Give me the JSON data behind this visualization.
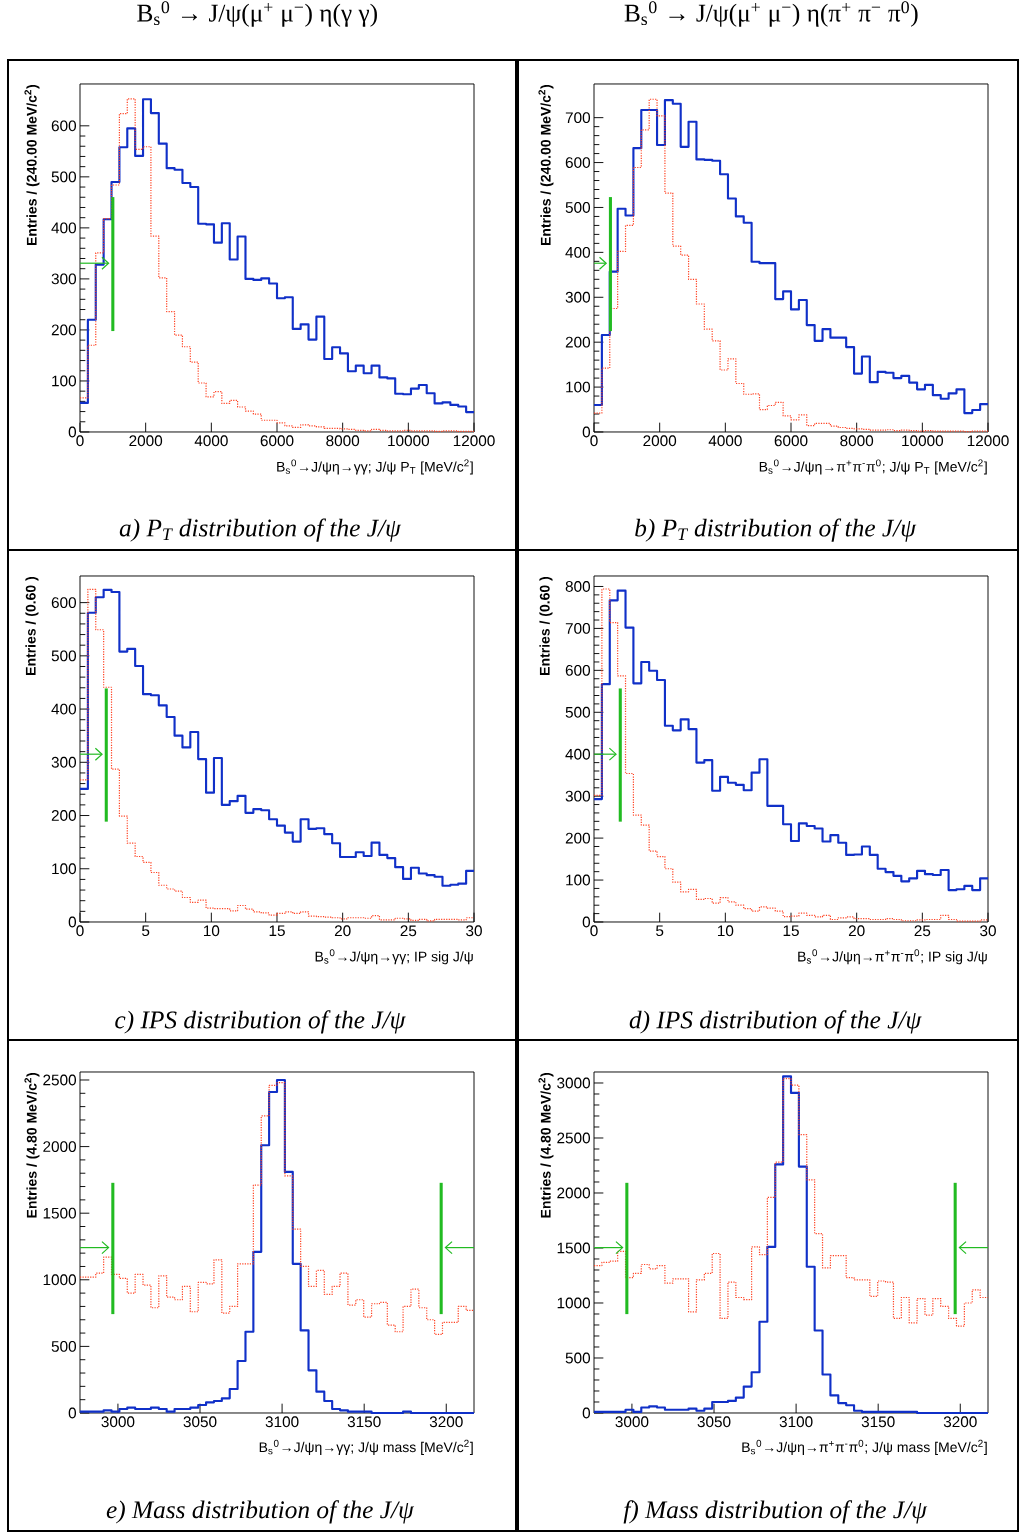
{
  "chart_data": [
    {
      "type": "histogram",
      "title": "B$_{s}$$^{0}$ → J/ψ(μ$^{+}$ μ$^{−}$) η(γ γ)",
      "xlabel": "B$_{s}$$^{0}$→J/ψη→γγ; J/ψ P$_{T}$ [MeV/c$^{2}$]",
      "ylabel": "Entries / (240.00 MeV/c$^{2}$)",
      "bins": [
        0,
        240,
        480,
        720,
        960,
        1200,
        1440,
        1680,
        1920,
        2160,
        2400,
        2640,
        2880,
        3120,
        3360,
        3600,
        3840,
        4080,
        4320,
        4560,
        4800,
        5040,
        5280,
        5520,
        5760,
        6000,
        6240,
        6480,
        6720,
        6960,
        7200,
        7440,
        7680,
        7920,
        8160,
        8400,
        8640,
        8880,
        9120,
        9360,
        9600,
        9840,
        10080,
        10320,
        10560,
        10800,
        11040,
        11280,
        11520,
        11760,
        12000
      ],
      "xlim": [
        0,
        12000
      ],
      "ylim": [
        0,
        682
      ],
      "xticks": [
        0,
        2000,
        4000,
        6000,
        8000,
        10000,
        12000
      ],
      "yticks": [
        0,
        100,
        200,
        300,
        400,
        500,
        600
      ],
      "series": [
        {
          "color": "#1030c8",
          "line_style": "solid",
          "values": [
            57,
            220,
            328,
            417,
            490,
            558,
            595,
            541,
            652,
            625,
            565,
            517,
            514,
            488,
            480,
            408,
            407,
            371,
            409,
            338,
            383,
            300,
            298,
            301,
            291,
            262,
            264,
            202,
            211,
            181,
            226,
            143,
            166,
            154,
            119,
            130,
            115,
            130,
            107,
            105,
            75,
            74,
            85,
            92,
            76,
            56,
            58,
            53,
            50,
            39
          ]
        },
        {
          "color": "#ff4020",
          "line_style": "dotted",
          "values": [
            67,
            170,
            351,
            418,
            484,
            624,
            653,
            554,
            559,
            384,
            302,
            236,
            190,
            167,
            137,
            96,
            69,
            79,
            56,
            62,
            49,
            41,
            35,
            23,
            23,
            18,
            12,
            9,
            14,
            12,
            10,
            7,
            7,
            6,
            5,
            3,
            2,
            5,
            3,
            2,
            2,
            3,
            2,
            2,
            2,
            1,
            2,
            2,
            1,
            1
          ]
        }
      ],
      "ref_lines": [
        {
          "axis": "x",
          "value": 1000,
          "color": "#22bb22"
        }
      ],
      "annotations": [
        "*a) P$_{T}$ distribution of the J/ψ*"
      ]
    },
    {
      "type": "histogram",
      "title": "B$_{s}$$^{0}$ → J/ψ(μ$^{+}$ μ$^{−}$) η(π$^{+}$ π$^{−}$ π$^{0}$)",
      "xlabel": "B$_{s}$$^{0}$→J/ψη→π$^{+}$π$^{-}$π$^{0}$; J/ψ P$_{T}$ [MeV/c$^{2}$]",
      "ylabel": "Entries / (240.00 MeV/c$^{2}$)",
      "bins": [
        0,
        240,
        480,
        720,
        960,
        1200,
        1440,
        1680,
        1920,
        2160,
        2400,
        2640,
        2880,
        3120,
        3360,
        3600,
        3840,
        4080,
        4320,
        4560,
        4800,
        5040,
        5280,
        5520,
        5760,
        6000,
        6240,
        6480,
        6720,
        6960,
        7200,
        7440,
        7680,
        7920,
        8160,
        8400,
        8640,
        8880,
        9120,
        9360,
        9600,
        9840,
        10080,
        10320,
        10560,
        10800,
        11040,
        11280,
        11520,
        11760,
        12000
      ],
      "xlim": [
        0,
        12000
      ],
      "ylim": [
        0,
        775
      ],
      "xticks": [
        0,
        2000,
        4000,
        6000,
        8000,
        10000,
        12000
      ],
      "yticks": [
        0,
        100,
        200,
        300,
        400,
        500,
        600,
        700
      ],
      "series": [
        {
          "color": "#1030c8",
          "line_style": "solid",
          "values": [
            60,
            216,
            357,
            497,
            482,
            632,
            717,
            717,
            639,
            739,
            731,
            635,
            691,
            607,
            606,
            604,
            574,
            520,
            480,
            466,
            379,
            376,
            376,
            296,
            313,
            273,
            294,
            238,
            203,
            229,
            210,
            210,
            189,
            130,
            168,
            111,
            134,
            132,
            120,
            125,
            110,
            95,
            105,
            82,
            74,
            86,
            95,
            42,
            49,
            62
          ]
        },
        {
          "color": "#ff4020",
          "line_style": "dotted",
          "values": [
            42,
            142,
            275,
            402,
            460,
            589,
            673,
            741,
            704,
            532,
            414,
            394,
            340,
            285,
            229,
            203,
            138,
            163,
            108,
            84,
            85,
            50,
            59,
            66,
            36,
            27,
            38,
            14,
            19,
            19,
            13,
            10,
            8,
            7,
            6,
            4,
            4,
            5,
            3,
            4,
            3,
            2,
            3,
            2,
            2,
            2,
            2,
            1,
            2,
            2
          ]
        }
      ],
      "ref_lines": [
        {
          "axis": "x",
          "value": 500,
          "color": "#22bb22"
        }
      ],
      "annotations": [
        "*b) P$_{T}$ distribution of the J/ψ*"
      ]
    },
    {
      "type": "histogram",
      "xlabel": "B$_{s}$$^{0}$→J/ψη→γγ; IP sig J/ψ",
      "ylabel": "Entries / (0.60 )",
      "bins": [
        0,
        0.6,
        1.2,
        1.8,
        2.4,
        3,
        3.6,
        4.2,
        4.8,
        5.4,
        6,
        6.6,
        7.2,
        7.8,
        8.4,
        9,
        9.6,
        10.2,
        10.8,
        11.4,
        12,
        12.6,
        13.2,
        13.8,
        14.4,
        15,
        15.6,
        16.2,
        16.8,
        17.4,
        18,
        18.6,
        19.2,
        19.8,
        20.4,
        21,
        21.6,
        22.2,
        22.8,
        23.4,
        24,
        24.6,
        25.2,
        25.8,
        26.4,
        27,
        27.6,
        28.2,
        28.8,
        29.4,
        30
      ],
      "xlim": [
        0,
        30
      ],
      "ylim": [
        0,
        650
      ],
      "xticks": [
        0,
        5,
        10,
        15,
        20,
        25,
        30
      ],
      "yticks": [
        0,
        100,
        200,
        300,
        400,
        500,
        600
      ],
      "series": [
        {
          "color": "#1030c8",
          "line_style": "solid",
          "values": [
            250,
            581,
            610,
            624,
            620,
            508,
            513,
            481,
            428,
            426,
            407,
            385,
            350,
            328,
            357,
            306,
            243,
            308,
            220,
            227,
            237,
            205,
            212,
            210,
            193,
            181,
            168,
            151,
            193,
            175,
            176,
            165,
            148,
            122,
            122,
            131,
            124,
            149,
            126,
            120,
            103,
            81,
            102,
            91,
            88,
            85,
            68,
            70,
            72,
            96
          ]
        },
        {
          "color": "#ff4020",
          "line_style": "dotted",
          "values": [
            267,
            625,
            549,
            441,
            287,
            199,
            148,
            123,
            112,
            93,
            69,
            62,
            58,
            46,
            37,
            41,
            26,
            25,
            25,
            21,
            31,
            24,
            19,
            17,
            13,
            16,
            19,
            16,
            19,
            11,
            10,
            9,
            8,
            6,
            8,
            8,
            7,
            12,
            4,
            4,
            7,
            6,
            3,
            5,
            2,
            5,
            5,
            5,
            4,
            8
          ]
        }
      ],
      "ref_lines": [
        {
          "axis": "x",
          "value": 2,
          "color": "#22bb22"
        }
      ],
      "annotations": [
        "*c) IPS distribution of the J/ψ*"
      ]
    },
    {
      "type": "histogram",
      "xlabel": "B$_{s}$$^{0}$→J/ψη→π$^{+}$π$^{-}$π$^{0}$; IP sig J/ψ",
      "ylabel": "Entries / (0.60 )",
      "bins": [
        0,
        0.6,
        1.2,
        1.8,
        2.4,
        3,
        3.6,
        4.2,
        4.8,
        5.4,
        6,
        6.6,
        7.2,
        7.8,
        8.4,
        9,
        9.6,
        10.2,
        10.8,
        11.4,
        12,
        12.6,
        13.2,
        13.8,
        14.4,
        15,
        15.6,
        16.2,
        16.8,
        17.4,
        18,
        18.6,
        19.2,
        19.8,
        20.4,
        21,
        21.6,
        22.2,
        22.8,
        23.4,
        24,
        24.6,
        25.2,
        25.8,
        26.4,
        27,
        27.6,
        28.2,
        28.8,
        29.4,
        30
      ],
      "xlim": [
        0,
        30
      ],
      "ylim": [
        0,
        825
      ],
      "xticks": [
        0,
        5,
        10,
        15,
        20,
        25,
        30
      ],
      "yticks": [
        0,
        100,
        200,
        300,
        400,
        500,
        600,
        700,
        800
      ],
      "series": [
        {
          "color": "#1030c8",
          "line_style": "solid",
          "values": [
            293,
            567,
            767,
            790,
            702,
            569,
            620,
            599,
            577,
            468,
            457,
            483,
            460,
            380,
            386,
            313,
            346,
            332,
            327,
            314,
            356,
            388,
            277,
            277,
            233,
            193,
            235,
            229,
            223,
            192,
            207,
            189,
            160,
            161,
            180,
            160,
            127,
            119,
            110,
            97,
            104,
            122,
            114,
            112,
            124,
            76,
            78,
            86,
            76,
            104
          ]
        },
        {
          "color": "#ff4020",
          "line_style": "dotted",
          "values": [
            302,
            794,
            714,
            587,
            354,
            255,
            231,
            169,
            156,
            127,
            95,
            72,
            78,
            54,
            56,
            45,
            58,
            48,
            40,
            32,
            26,
            36,
            33,
            26,
            13,
            14,
            21,
            16,
            12,
            16,
            6,
            10,
            12,
            8,
            8,
            6,
            6,
            8,
            6,
            3,
            3,
            5,
            6,
            6,
            16,
            6,
            2,
            2,
            2,
            5
          ]
        }
      ],
      "ref_lines": [
        {
          "axis": "x",
          "value": 2,
          "color": "#22bb22"
        }
      ],
      "annotations": [
        "*d) IPS distribution of the J/ψ*"
      ]
    },
    {
      "type": "histogram",
      "xlabel": "B$_{s}$$^{0}$→J/ψη→γγ; J/ψ mass [MeV/c$^{2}$]",
      "ylabel": "Entries / (4.80 MeV/c$^{2}$)",
      "bins": [
        2976.9,
        2981.7,
        2986.5,
        2991.3,
        2996.1,
        3000.9,
        3005.7,
        3010.5,
        3015.3,
        3020.1,
        3024.9,
        3029.7,
        3034.5,
        3039.3,
        3044.1,
        3048.9,
        3053.7,
        3058.5,
        3063.3,
        3068.1,
        3072.9,
        3077.7,
        3082.5,
        3087.3,
        3092.1,
        3096.9,
        3101.7,
        3106.5,
        3111.3,
        3116.1,
        3120.9,
        3125.7,
        3130.5,
        3135.3,
        3140.1,
        3144.9,
        3149.7,
        3154.5,
        3159.3,
        3164.1,
        3168.9,
        3173.7,
        3178.5,
        3183.3,
        3188.1,
        3192.9,
        3197.7,
        3202.5,
        3207.3,
        3212.1,
        3216.9
      ],
      "xlim": [
        2976.9,
        3216.9
      ],
      "ylim": [
        0,
        2560
      ],
      "xticks": [
        3000,
        3050,
        3100,
        3150,
        3200
      ],
      "yticks": [
        0,
        500,
        1000,
        1500,
        2000,
        2500
      ],
      "series": [
        {
          "color": "#1030c8",
          "line_style": "solid",
          "values": [
            10,
            10,
            10,
            20,
            10,
            30,
            40,
            30,
            30,
            40,
            30,
            10,
            30,
            30,
            40,
            60,
            80,
            90,
            110,
            180,
            390,
            610,
            1210,
            2010,
            2410,
            2500,
            1810,
            1120,
            620,
            320,
            160,
            90,
            30,
            20,
            10,
            10,
            10,
            0,
            0,
            0,
            0,
            10,
            0,
            0,
            0,
            0,
            0,
            0,
            0,
            0
          ]
        },
        {
          "color": "#ff4020",
          "line_style": "dotted",
          "values": [
            1020,
            1020,
            1050,
            1170,
            1040,
            1010,
            900,
            1040,
            960,
            790,
            1030,
            870,
            850,
            950,
            760,
            980,
            970,
            1150,
            750,
            800,
            1120,
            1120,
            1710,
            2230,
            2460,
            2480,
            1780,
            1380,
            1100,
            950,
            1070,
            890,
            950,
            1050,
            810,
            850,
            720,
            820,
            830,
            660,
            610,
            800,
            930,
            790,
            700,
            590,
            680,
            680,
            800,
            770
          ]
        }
      ],
      "ref_lines": [
        {
          "axis": "x",
          "value": 2996.9,
          "color": "#22bb22"
        },
        {
          "axis": "x",
          "value": 3196.9,
          "color": "#22bb22"
        }
      ],
      "annotations": [
        "*e) Mass distribution of the J/ψ*"
      ]
    },
    {
      "type": "histogram",
      "xlabel": "B$_{s}$$^{0}$→J/ψη→π$^{+}$π$^{-}$π$^{0}$; J/ψ mass [MeV/c$^{2}$]",
      "ylabel": "Entries / (4.80 MeV/c$^{2}$)",
      "bins": [
        2976.9,
        2981.7,
        2986.5,
        2991.3,
        2996.1,
        3000.9,
        3005.7,
        3010.5,
        3015.3,
        3020.1,
        3024.9,
        3029.7,
        3034.5,
        3039.3,
        3044.1,
        3048.9,
        3053.7,
        3058.5,
        3063.3,
        3068.1,
        3072.9,
        3077.7,
        3082.5,
        3087.3,
        3092.1,
        3096.9,
        3101.7,
        3106.5,
        3111.3,
        3116.1,
        3120.9,
        3125.7,
        3130.5,
        3135.3,
        3140.1,
        3144.9,
        3149.7,
        3154.5,
        3159.3,
        3164.1,
        3168.9,
        3173.7,
        3178.5,
        3183.3,
        3188.1,
        3192.9,
        3197.7,
        3202.5,
        3207.3,
        3212.1,
        3216.9
      ],
      "xlim": [
        2976.9,
        3216.9
      ],
      "ylim": [
        0,
        3100
      ],
      "xticks": [
        3000,
        3050,
        3100,
        3150,
        3200
      ],
      "yticks": [
        0,
        500,
        1000,
        1500,
        2000,
        2500,
        3000
      ],
      "series": [
        {
          "color": "#1030c8",
          "line_style": "solid",
          "values": [
            10,
            10,
            10,
            10,
            30,
            10,
            50,
            60,
            50,
            30,
            30,
            30,
            40,
            20,
            40,
            100,
            100,
            110,
            140,
            240,
            370,
            830,
            1510,
            2260,
            3060,
            2910,
            2240,
            1330,
            750,
            350,
            160,
            90,
            70,
            20,
            10,
            10,
            10,
            10,
            10,
            10,
            10,
            0,
            0,
            0,
            0,
            0,
            0,
            0,
            0,
            0
          ]
        },
        {
          "color": "#ff4020",
          "line_style": "dotted",
          "values": [
            1340,
            1370,
            1380,
            1470,
            1230,
            1270,
            1350,
            1310,
            1340,
            1180,
            1220,
            1220,
            920,
            1210,
            1270,
            1450,
            860,
            1190,
            1050,
            1030,
            1510,
            1440,
            1960,
            2280,
            3040,
            2980,
            2530,
            2120,
            1630,
            1320,
            1430,
            1430,
            1230,
            1210,
            1210,
            1060,
            1200,
            1190,
            860,
            1050,
            820,
            1040,
            890,
            1040,
            970,
            860,
            790,
            1000,
            1120,
            1050
          ]
        }
      ],
      "ref_lines": [
        {
          "axis": "x",
          "value": 2996.9,
          "color": "#22bb22"
        },
        {
          "axis": "x",
          "value": 3196.9,
          "color": "#22bb22"
        }
      ],
      "annotations": [
        "*f) Mass distribution of the J/ψ*"
      ]
    }
  ]
}
